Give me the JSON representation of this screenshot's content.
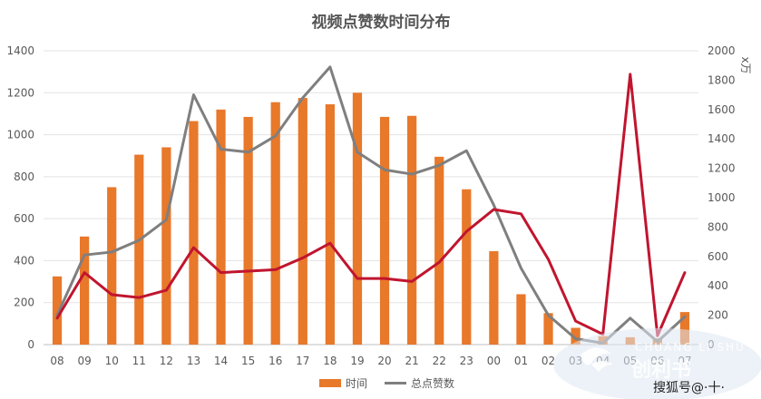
{
  "chart_data": {
    "type": "bar",
    "title": "视频点赞数时间分布",
    "categories": [
      "08",
      "09",
      "10",
      "11",
      "12",
      "13",
      "14",
      "15",
      "16",
      "17",
      "18",
      "19",
      "20",
      "21",
      "22",
      "23",
      "00",
      "01",
      "02",
      "03",
      "04",
      "05",
      "06",
      "07"
    ],
    "y_left": {
      "range": [
        0,
        1400
      ],
      "ticks": [
        "0",
        "200",
        "400",
        "600",
        "800",
        "1000",
        "1200",
        "1400"
      ]
    },
    "y_right": {
      "range": [
        0,
        2000
      ],
      "ticks": [
        "0",
        "200",
        "400",
        "600",
        "800",
        "1000",
        "1200",
        "1400",
        "1600",
        "1800",
        "2000"
      ],
      "unit_label": "x万"
    },
    "grid": true,
    "legend_position": "bottom",
    "series": [
      {
        "name": "时间",
        "kind": "bar",
        "axis": "left",
        "color": "#E8782A",
        "values": [
          325,
          515,
          750,
          905,
          940,
          1065,
          1120,
          1085,
          1155,
          1175,
          1145,
          1200,
          1085,
          1090,
          895,
          740,
          445,
          240,
          150,
          80,
          40,
          35,
          30,
          155
        ]
      },
      {
        "name": "总点赞数",
        "kind": "line",
        "axis": "right",
        "color": "#7F7F7F",
        "values": [
          200,
          610,
          630,
          710,
          850,
          1700,
          1330,
          1310,
          1420,
          1680,
          1890,
          1310,
          1190,
          1160,
          1220,
          1320,
          950,
          520,
          200,
          40,
          10,
          180,
          20,
          190
        ]
      },
      {
        "name": "",
        "kind": "line",
        "axis": "right",
        "color": "#C0152F",
        "values": [
          180,
          490,
          340,
          320,
          370,
          660,
          490,
          500,
          510,
          590,
          690,
          450,
          450,
          430,
          560,
          770,
          920,
          890,
          580,
          160,
          70,
          1840,
          60,
          490
        ]
      }
    ]
  },
  "watermark": {
    "top_text": "CHUANG LI SHU",
    "main_text": "创利书",
    "source_text": "搜狐号@·十·"
  }
}
